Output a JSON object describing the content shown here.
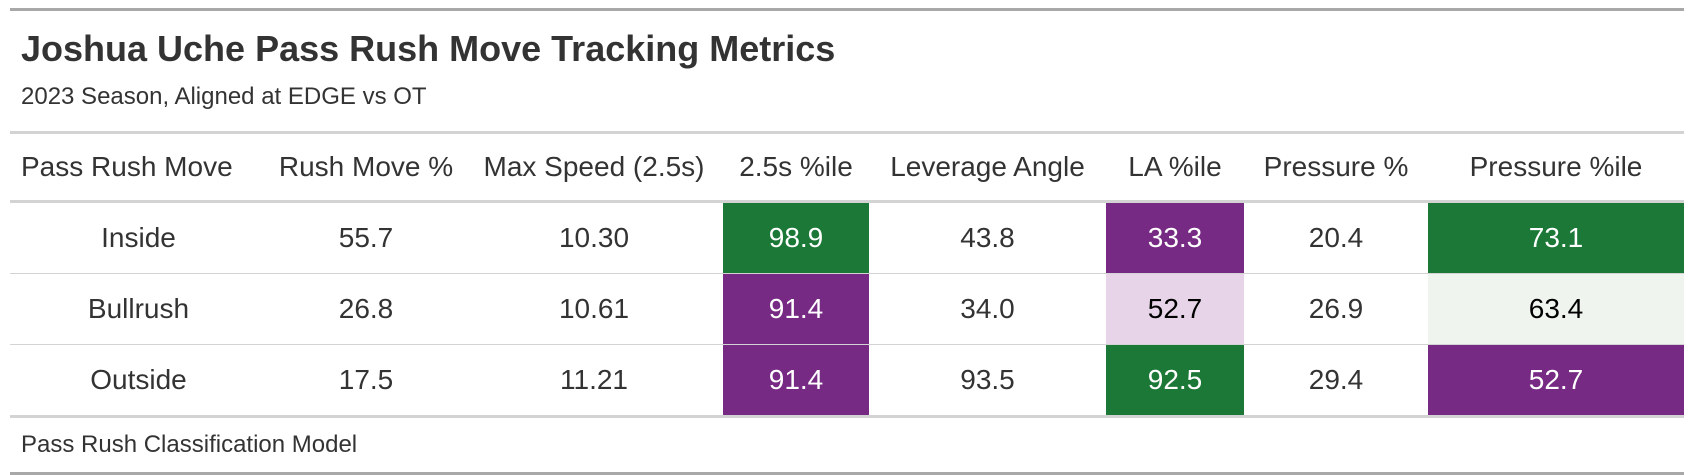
{
  "title": "Joshua Uche Pass Rush Move Tracking Metrics",
  "subtitle": "2023 Season, Aligned at EDGE vs OT",
  "source": "Pass Rush Classification Model",
  "colors": {
    "green": "#1b7837",
    "purple": "#762a83",
    "light_purple": "#e7d4e8",
    "light_green": "#f0f4ef"
  },
  "chart_data": {
    "type": "table",
    "title": "Joshua Uche Pass Rush Move Tracking Metrics",
    "subtitle": "2023 Season, Aligned at EDGE vs OT",
    "columns": [
      "Pass Rush Move",
      "Rush Move %",
      "Max Speed (2.5s)",
      "2.5s %ile",
      "Leverage Angle",
      "LA %ile",
      "Pressure %",
      "Pressure %ile"
    ],
    "rows": [
      [
        "Inside",
        "55.7",
        "10.30",
        "98.9",
        "43.8",
        "33.3",
        "20.4",
        "73.1"
      ],
      [
        "Bullrush",
        "26.8",
        "10.61",
        "91.4",
        "34.0",
        "52.7",
        "26.9",
        "63.4"
      ],
      [
        "Outside",
        "17.5",
        "11.21",
        "91.4",
        "93.5",
        "92.5",
        "29.4",
        "52.7"
      ]
    ],
    "cell_fills": {
      "3": [
        "#1b7837",
        "#762a83",
        "#762a83"
      ],
      "5": [
        "#762a83",
        "#e7d4e8",
        "#1b7837"
      ],
      "7": [
        "#1b7837",
        "#f0f4ef",
        "#762a83"
      ]
    },
    "cell_text_colors": {
      "3": [
        "#ffffff",
        "#ffffff",
        "#ffffff"
      ],
      "5": [
        "#ffffff",
        "#000000",
        "#ffffff"
      ],
      "7": [
        "#ffffff",
        "#000000",
        "#ffffff"
      ]
    },
    "source": "Pass Rush Classification Model"
  }
}
